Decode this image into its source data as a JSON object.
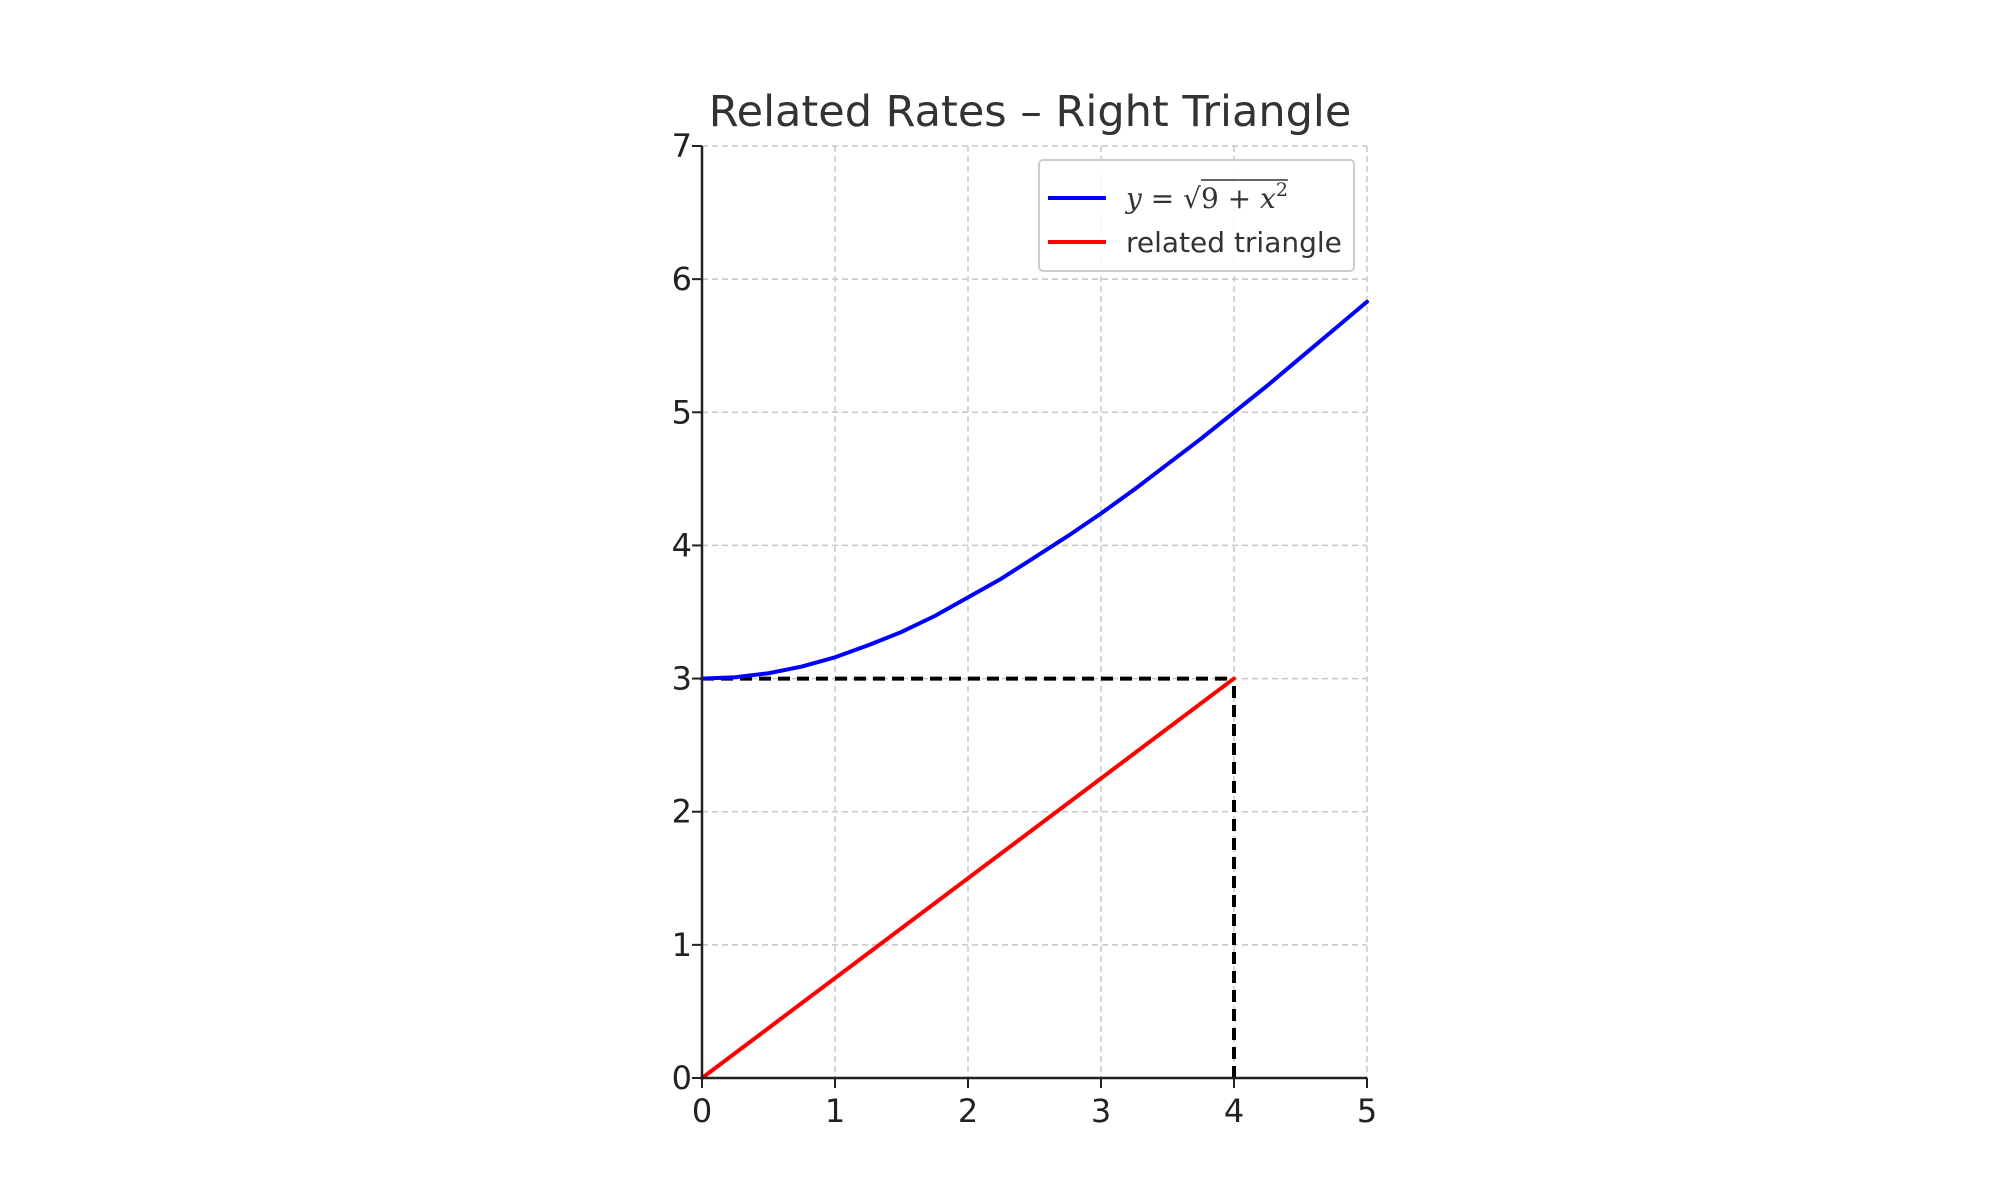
{
  "chart_data": {
    "type": "line",
    "title": "Related Rates – Right Triangle",
    "xlabel": "",
    "ylabel": "",
    "xlim": [
      0,
      5
    ],
    "ylim": [
      0,
      7
    ],
    "xticks": [
      "0",
      "1",
      "2",
      "3",
      "4",
      "5"
    ],
    "yticks": [
      "0",
      "1",
      "2",
      "3",
      "4",
      "5",
      "6",
      "7"
    ],
    "grid": true,
    "legend_position": "top-right",
    "series": [
      {
        "name": "y = √(9 + x²)",
        "color": "#0000ff",
        "x": [
          0,
          0.25,
          0.5,
          0.75,
          1,
          1.25,
          1.5,
          1.75,
          2,
          2.25,
          2.5,
          2.75,
          3,
          3.25,
          3.5,
          3.75,
          4,
          4.25,
          4.5,
          4.75,
          5
        ],
        "y": [
          3.0,
          3.01,
          3.04,
          3.09,
          3.16,
          3.25,
          3.35,
          3.47,
          3.61,
          3.75,
          3.91,
          4.07,
          4.24,
          4.42,
          4.61,
          4.8,
          5.0,
          5.2,
          5.41,
          5.62,
          5.83
        ]
      },
      {
        "name": "related triangle",
        "color": "#ff0000",
        "x": [
          0,
          4
        ],
        "y": [
          0,
          3
        ]
      }
    ],
    "reference_lines": [
      {
        "style": "dashed",
        "color": "#000000",
        "x": [
          0,
          4
        ],
        "y": [
          3,
          3
        ]
      },
      {
        "style": "dashed",
        "color": "#000000",
        "x": [
          4,
          4
        ],
        "y": [
          0,
          3
        ]
      }
    ]
  },
  "legend": {
    "entries": [
      {
        "prefix": "y",
        "eq": " = ",
        "radical": "√",
        "inner": "9 + ",
        "var": "x",
        "sup": "2"
      },
      {
        "label": "related triangle"
      }
    ]
  }
}
